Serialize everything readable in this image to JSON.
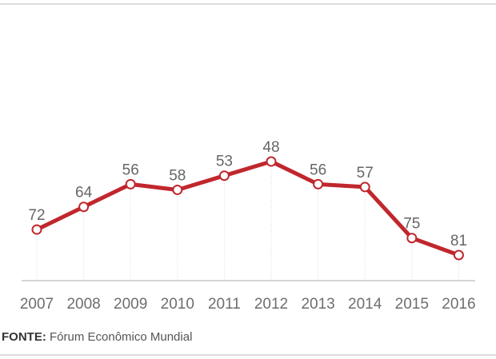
{
  "chart_data": {
    "type": "line",
    "title": "",
    "xlabel": "",
    "ylabel": "",
    "categories": [
      "2007",
      "2008",
      "2009",
      "2010",
      "2011",
      "2012",
      "2013",
      "2014",
      "2015",
      "2016"
    ],
    "series": [
      {
        "values": [
          72,
          64,
          56,
          58,
          53,
          48,
          56,
          57,
          75,
          81
        ],
        "color": "#c0272d"
      }
    ],
    "y_axis_inverted": true,
    "ylim": [
      48,
      81
    ],
    "grid": "vertical dotted lines at each year",
    "legend": "none"
  },
  "source": {
    "label": "FONTE:",
    "text": "Fórum Econômico Mundial"
  },
  "colors": {
    "line": "#c0272d",
    "marker_fill": "#ffffff",
    "gridline": "#d9d9d9",
    "axis": "#c8c8c8",
    "label_text": "#666666"
  }
}
